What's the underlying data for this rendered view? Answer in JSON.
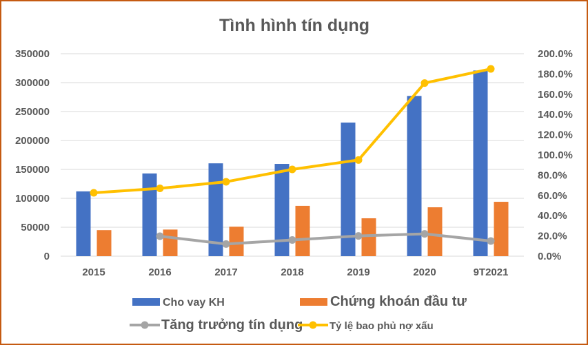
{
  "chart_data": {
    "type": "bar",
    "title": "Tình hình tín dụng",
    "categories": [
      "2015",
      "2016",
      "2017",
      "2018",
      "2019",
      "2020",
      "9T2021"
    ],
    "y_left": {
      "range": [
        0,
        350000
      ],
      "ticks": [
        "0",
        "50000",
        "100000",
        "150000",
        "200000",
        "250000",
        "300000",
        "350000"
      ]
    },
    "y_right": {
      "range": [
        0,
        200
      ],
      "ticks": [
        "0.0%",
        "20.0%",
        "40.0%",
        "60.0%",
        "80.0%",
        "100.0%",
        "120.0%",
        "140.0%",
        "160.0%",
        "180.0%",
        "200.0%"
      ]
    },
    "series": [
      {
        "name": "Cho vay KH",
        "type": "bar",
        "axis": "left",
        "color": "#4472c4",
        "values": [
          112000,
          143000,
          160500,
          159500,
          231000,
          277000,
          321000
        ]
      },
      {
        "name": "Chứng khoán đầu tư",
        "type": "bar",
        "axis": "left",
        "color": "#ed7d31",
        "values": [
          45000,
          46000,
          51000,
          87000,
          65500,
          84500,
          94000
        ]
      },
      {
        "name": "Tăng trưởng tín dụng",
        "type": "line",
        "axis": "right",
        "color": "#a5a5a5",
        "values": [
          null,
          19.7,
          12,
          16,
          20,
          22,
          15
        ]
      },
      {
        "name": "Tỷ lệ bao phủ nợ xấu",
        "type": "line",
        "axis": "right",
        "color": "#ffc000",
        "values": [
          62.6,
          67,
          73.5,
          85.7,
          95,
          171,
          185
        ]
      }
    ],
    "grid": true,
    "legend": "bottom"
  }
}
